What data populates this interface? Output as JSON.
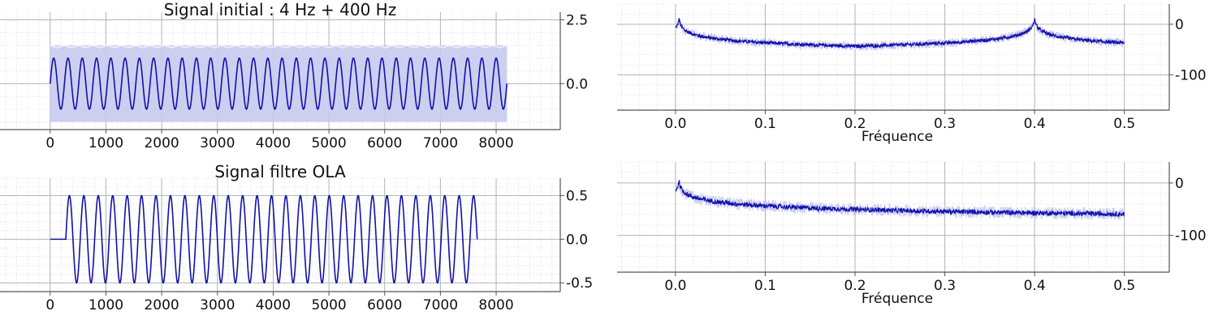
{
  "colors": {
    "line": "#1111aa",
    "shade": "#c8caf0",
    "grid_major": "#b4b4b4",
    "grid_minor": "#e6e6e6",
    "axis": "#555555"
  },
  "chart_data": [
    {
      "id": "time-top",
      "type": "line",
      "title": "Signal initial : 4 Hz + 400 Hz",
      "xlabel": "",
      "ylabel": "",
      "xlim": [
        -900,
        9150
      ],
      "ylim": [
        -1.8,
        2.8
      ],
      "xticks": [
        0,
        1000,
        2000,
        3000,
        4000,
        5000,
        6000,
        7000,
        8000
      ],
      "xtick_labels": [
        "0",
        "1000",
        "2000",
        "3000",
        "4000",
        "5000",
        "6000",
        "7000",
        "8000"
      ],
      "yticks": [
        0.0,
        2.5
      ],
      "ytick_labels": [
        "0.0",
        "2.5"
      ],
      "y_axis_side": "right",
      "grid": true,
      "series": [
        {
          "role": "envelope",
          "x_range": [
            0,
            8192
          ],
          "upper": 1.5,
          "lower": -1.5
        },
        {
          "role": "signal",
          "x_range": [
            0,
            8192
          ],
          "amplitude": 1.0,
          "cycles": 32
        }
      ]
    },
    {
      "id": "freq-top",
      "type": "line",
      "title": "",
      "xlabel": "Fréquence",
      "ylabel": "",
      "xlim": [
        -0.065,
        0.55
      ],
      "ylim": [
        -170,
        40
      ],
      "xticks": [
        0.0,
        0.1,
        0.2,
        0.3,
        0.4,
        0.5
      ],
      "xtick_labels": [
        "0.0",
        "0.1",
        "0.2",
        "0.3",
        "0.4",
        "0.5"
      ],
      "yticks": [
        0,
        -100
      ],
      "ytick_labels": [
        "0",
        "-100"
      ],
      "y_axis_side": "right",
      "grid": true,
      "series": [
        {
          "role": "spectrum",
          "x_range": [
            0,
            0.5
          ],
          "peaks": [
            {
              "f": 0.004,
              "level": 12
            },
            {
              "f": 0.4,
              "level": 12
            }
          ],
          "floor": -148,
          "noise": 7
        }
      ]
    },
    {
      "id": "time-bottom",
      "type": "line",
      "title": "Signal filtre OLA",
      "xlabel": "",
      "ylabel": "",
      "xlim": [
        -900,
        9150
      ],
      "ylim": [
        -0.6,
        0.7
      ],
      "xticks": [
        0,
        1000,
        2000,
        3000,
        4000,
        5000,
        6000,
        7000,
        8000
      ],
      "xtick_labels": [
        "0",
        "1000",
        "2000",
        "3000",
        "4000",
        "5000",
        "6000",
        "7000",
        "8000"
      ],
      "yticks": [
        0.5,
        0.0,
        -0.5
      ],
      "ytick_labels": [
        "0.5",
        "0.0",
        "-0.5"
      ],
      "y_axis_side": "right",
      "grid": true,
      "series": [
        {
          "role": "signal",
          "x_range": [
            0,
            7660
          ],
          "delay": 280,
          "amplitude": 0.5,
          "cycles": 28.5
        }
      ]
    },
    {
      "id": "freq-bottom",
      "type": "line",
      "title": "",
      "xlabel": "Fréquence",
      "ylabel": "",
      "xlim": [
        -0.065,
        0.55
      ],
      "ylim": [
        -170,
        40
      ],
      "xticks": [
        0.0,
        0.1,
        0.2,
        0.3,
        0.4,
        0.5
      ],
      "xtick_labels": [
        "0.0",
        "0.1",
        "0.2",
        "0.3",
        "0.4",
        "0.5"
      ],
      "yticks": [
        0,
        -100
      ],
      "ytick_labels": [
        "0",
        "-100"
      ],
      "y_axis_side": "right",
      "grid": true,
      "series": [
        {
          "role": "spectrum",
          "x_range": [
            0,
            0.5
          ],
          "peaks": [
            {
              "f": 0.004,
              "level": 5
            }
          ],
          "floor": -142,
          "noise": 9
        }
      ]
    }
  ]
}
